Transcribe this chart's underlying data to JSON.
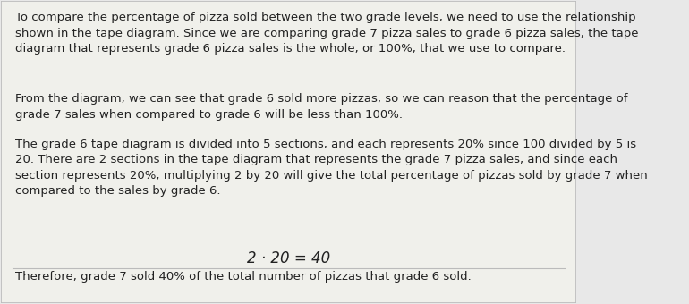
{
  "background_color": "#e8e8e8",
  "box_color": "#f0f0eb",
  "border_color": "#bbbbbb",
  "text_color": "#222222",
  "font_size": 9.5,
  "equation_font_size": 12,
  "paragraph1": "To compare the percentage of pizza sold between the two grade levels, we need to use the relationship\nshown in the tape diagram. Since we are comparing grade 7 pizza sales to grade 6 pizza sales, the tape\ndiagram that represents grade 6 pizza sales is the whole, or 100%, that we use to compare.",
  "paragraph2": "From the diagram, we can see that grade 6 sold more pizzas, so we can reason that the percentage of\ngrade 7 sales when compared to grade 6 will be less than 100%.",
  "paragraph3": "The grade 6 tape diagram is divided into 5 sections, and each represents 20% since 100 divided by 5 is\n20. There are 2 sections in the tape diagram that represents the grade 7 pizza sales, and since each\nsection represents 20%, multiplying 2 by 20 will give the total percentage of pizzas sold by grade 7 when\ncompared to the sales by grade 6.",
  "equation": "2 · 20 = 40",
  "conclusion": "Therefore, grade 7 sold 40% of the total number of pizzas that grade 6 sold."
}
